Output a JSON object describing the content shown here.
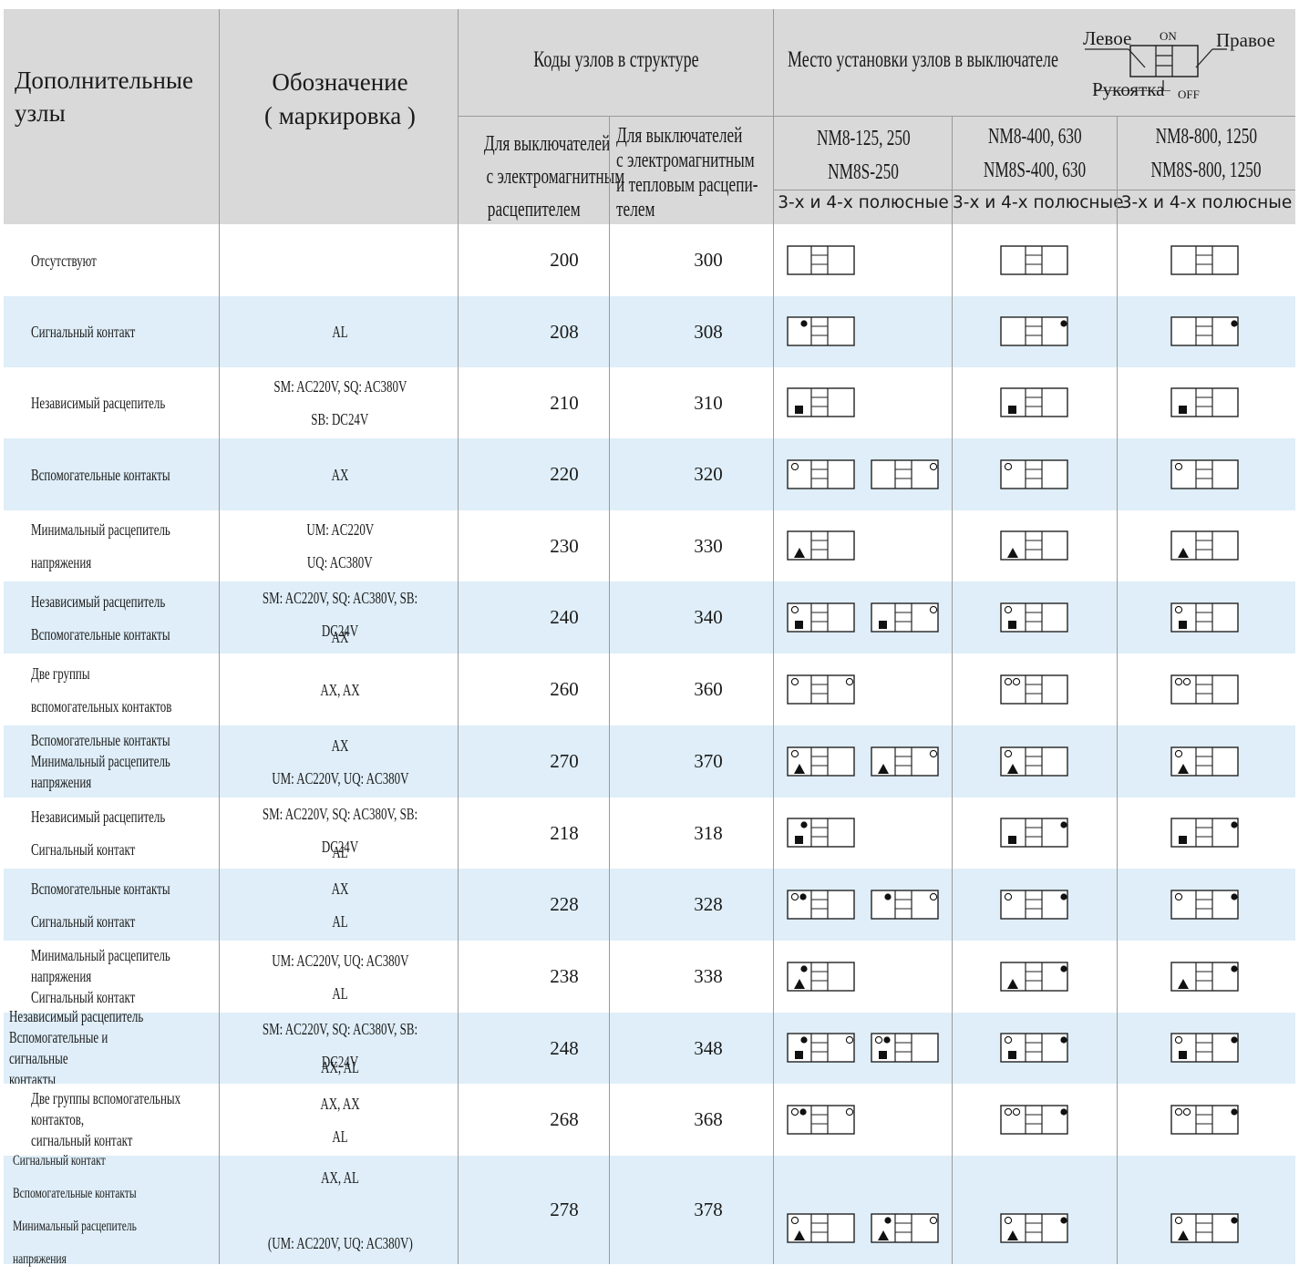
{
  "header": {
    "col_units": "Дополнительные узлы",
    "col_units_l1": "Дополнительные",
    "col_units_l2": "узлы",
    "col_mark_l1": "Обозначение",
    "col_mark_l2": "( маркировка )",
    "col_codes": "Коды узлов в структуре",
    "col_codes_em": [
      "Для выключателей",
      "с электромагнитным",
      "расцепителем"
    ],
    "col_codes_emt": [
      "Для выключателей",
      "с электромагнитным",
      " и тепловым расцепи-",
      "телем"
    ],
    "col_place": "Место установки узлов в выключателе",
    "legend": {
      "left": "Левое",
      "on": "ON",
      "right": "Правое",
      "handle": "Рукоятка",
      "off": "OFF"
    },
    "models": [
      {
        "l1": "NM8-125, 250",
        "l2": "NM8S-250",
        "poles": "3-х и 4-х полюсные"
      },
      {
        "l1": "NM8-400, 630",
        "l2": "NM8S-400, 630",
        "poles": "3-х и 4-х полюсные"
      },
      {
        "l1": "NM8-800, 1250",
        "l2": "NM8S-800, 1250",
        "poles": "3-х и 4-х полюсные"
      }
    ]
  },
  "rows": [
    {
      "name": [
        "Отсутствуют"
      ],
      "mark": [
        ""
      ],
      "code1": "200",
      "code2": "300"
    },
    {
      "name": [
        "Сигнальный контакт"
      ],
      "mark": [
        "AL"
      ],
      "code1": "208",
      "code2": "308"
    },
    {
      "name": [
        "Независимый расцепитель"
      ],
      "mark": [
        "SM: AC220V, SQ: AC380V",
        "SB: DC24V"
      ],
      "code1": "210",
      "code2": "310"
    },
    {
      "name": [
        "Вспомогательные контакты"
      ],
      "mark": [
        "AX"
      ],
      "code1": "220",
      "code2": "320"
    },
    {
      "name": [
        "Минимальный расцепитель",
        " напряжения"
      ],
      "mark": [
        "UM: AC220V",
        "UQ: AC380V"
      ],
      "code1": "230",
      "code2": "330"
    },
    {
      "name": [
        "Независимый расцепитель",
        "Вспомогательные контакты"
      ],
      "mark": [
        "SM: AC220V, SQ: AC380V, SB: DC24V",
        "AX"
      ],
      "code1": "240",
      "code2": "340"
    },
    {
      "name": [
        "Две группы",
        "вспомогательных контактов"
      ],
      "mark": [
        "AX, AX"
      ],
      "code1": "260",
      "code2": "360"
    },
    {
      "name": [
        "Вспомогательные контакты",
        "Минимальный расцепитель",
        "напряжения"
      ],
      "mark": [
        "AX",
        "UM: AC220V, UQ: AC380V"
      ],
      "code1": "270",
      "code2": "370"
    },
    {
      "name": [
        "Независимый расцепитель",
        "Сигнальный контакт"
      ],
      "mark": [
        "SM: AC220V, SQ: AC380V, SB: DC24V",
        "AL"
      ],
      "code1": "218",
      "code2": "318"
    },
    {
      "name": [
        "Вспомогательные контакты",
        "Сигнальный контакт"
      ],
      "mark": [
        "AX",
        "AL"
      ],
      "code1": "228",
      "code2": "328"
    },
    {
      "name": [
        " Минимальный расцепитель",
        "  напряжения",
        " Сигнальный контакт"
      ],
      "mark": [
        "UM: AC220V, UQ: AC380V",
        "AL"
      ],
      "code1": "238",
      "code2": "338"
    },
    {
      "name": [
        "Независимый расцепитель",
        "Вспомогательные и сигнальные",
        " контакты"
      ],
      "mark": [
        "SM: AC220V, SQ: AC380V, SB: DC24V",
        "AX, AL"
      ],
      "code1": "248",
      "code2": "348"
    },
    {
      "name": [
        "Две группы вспомогательных",
        "контактов,",
        "сигнальный контакт"
      ],
      "mark": [
        "AX, AX",
        "AL"
      ],
      "code1": "268",
      "code2": "368"
    },
    {
      "name": [
        "Сигнальный контакт",
        "Вспомогательные контакты",
        "Минимальный расцепитель напряжения"
      ],
      "mark": [
        "AX, AL",
        "",
        "(UM: AC220V, UQ: AC380V)"
      ],
      "code1": "278",
      "code2": "378"
    }
  ],
  "symbols": {
    "legend": [
      "empty",
      "dot",
      "square",
      "circle",
      "triangle"
    ],
    "rows": [
      [
        [
          [
            "e"
          ]
        ],
        [
          [
            "e"
          ]
        ],
        [
          [
            "e"
          ]
        ]
      ],
      [
        [
          [
            "L",
            "dot"
          ]
        ],
        [
          [
            "R",
            "dot"
          ]
        ],
        [
          [
            "R",
            "dot"
          ]
        ]
      ],
      [
        [
          [
            "L",
            "sq"
          ]
        ],
        [
          [
            "L",
            "sq"
          ]
        ],
        [
          [
            "L",
            "sq"
          ]
        ]
      ],
      [
        [
          [
            "L",
            "circ"
          ]
        ],
        [
          [
            "L",
            "circ"
          ]
        ],
        [
          [
            "L",
            "circ"
          ]
        ]
      ],
      [
        [
          [
            "L",
            "tri"
          ]
        ],
        [
          [
            "L",
            "tri"
          ]
        ],
        [
          [
            "L",
            "tri"
          ]
        ]
      ],
      [
        [
          [
            "L",
            "circ_sq"
          ]
        ],
        [
          [
            "L",
            "circ_sq"
          ]
        ],
        [
          [
            "L",
            "circ_sq"
          ]
        ]
      ],
      [
        [
          [
            "L",
            "circ"
          ],
          [
            "R",
            "circ"
          ]
        ],
        [
          [
            "L",
            "circ2"
          ]
        ],
        [
          [
            "L",
            "circ2"
          ]
        ]
      ],
      [
        [
          [
            "L",
            "circ_tri"
          ]
        ],
        [
          [
            "L",
            "circ_tri"
          ]
        ],
        [
          [
            "L",
            "circ_tri"
          ]
        ]
      ],
      [
        [
          [
            "L",
            "dot_sq"
          ]
        ],
        [
          [
            "L",
            "sq"
          ],
          [
            "R",
            "dot"
          ]
        ],
        [
          [
            "L",
            "sq"
          ],
          [
            "R",
            "dot"
          ]
        ]
      ],
      [
        [
          [
            "L",
            "circ_dot"
          ]
        ],
        [
          [
            "L",
            "circ"
          ],
          [
            "R",
            "dot"
          ]
        ],
        [
          [
            "L",
            "circ"
          ],
          [
            "R",
            "dot"
          ]
        ]
      ],
      [
        [
          [
            "L",
            "dot_tri"
          ]
        ],
        [
          [
            "L",
            "tri"
          ],
          [
            "R",
            "dot"
          ]
        ],
        [
          [
            "L",
            "tri"
          ],
          [
            "R",
            "dot"
          ]
        ]
      ],
      [
        [
          [
            "L",
            "dot_sq"
          ],
          [
            "R",
            "circ"
          ]
        ],
        [
          [
            "L",
            "circ_sq"
          ],
          [
            "R",
            "dot"
          ]
        ],
        [
          [
            "L",
            "circ_sq"
          ],
          [
            "R",
            "dot"
          ]
        ]
      ],
      [
        [
          [
            "L",
            "circ_dot"
          ],
          [
            "R",
            "circ"
          ]
        ],
        [
          [
            "L",
            "circ2"
          ],
          [
            "R",
            "dot"
          ]
        ],
        [
          [
            "L",
            "circ2"
          ],
          [
            "R",
            "dot"
          ]
        ]
      ],
      [
        [
          [
            "L",
            "circ_tri"
          ],
          [
            "R",
            "dot"
          ]
        ],
        [
          [
            "L",
            "circ_tri"
          ],
          [
            "R",
            "dot"
          ]
        ],
        [
          [
            "L",
            "circ_tri"
          ],
          [
            "R",
            "dot"
          ]
        ]
      ]
    ]
  }
}
